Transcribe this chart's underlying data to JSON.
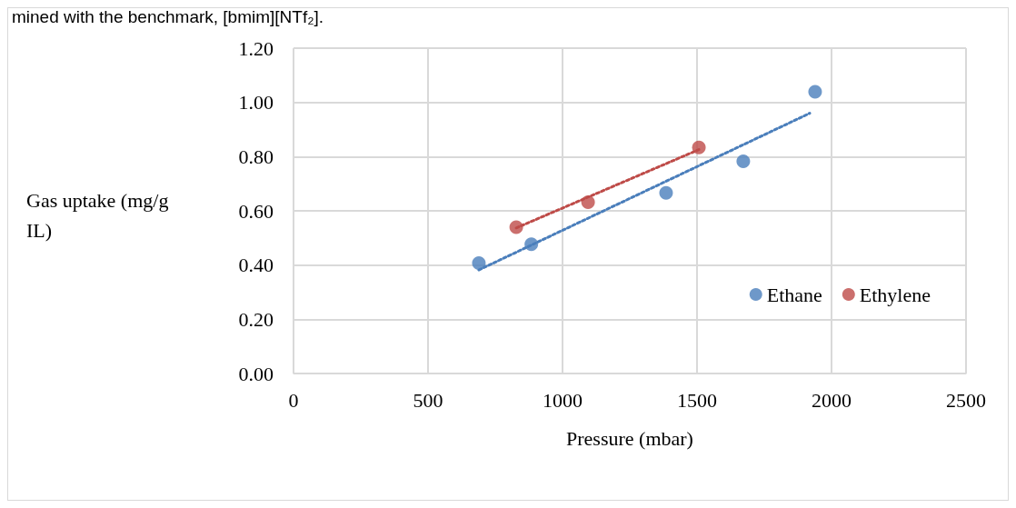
{
  "chart_data": {
    "type": "scatter",
    "xlabel": "Pressure (mbar)",
    "ylabel": "Gas uptake (mg/g IL)",
    "annotations": [
      "mined with the benchmark, [bmim][NTf₂]."
    ],
    "series": [
      {
        "name": "Ethane",
        "color": "#4a7ebb",
        "x": [
          689,
          884,
          1385,
          1672,
          1939
        ],
        "values": [
          0.407,
          0.477,
          0.666,
          0.783,
          1.039
        ]
      },
      {
        "name": "Ethylene",
        "color": "#be4b48",
        "x": [
          828,
          1095,
          1507
        ],
        "values": [
          0.54,
          0.632,
          0.834
        ]
      },
      {
        "type": "line",
        "color": "#4a7ebb",
        "line_style": "dotted",
        "marker": "none",
        "x": [
          689,
          1919
        ],
        "values": [
          0.382,
          0.96
        ]
      },
      {
        "type": "line",
        "color": "#be4b48",
        "line_style": "dotted",
        "marker": "none",
        "x": [
          828,
          1507
        ],
        "values": [
          0.537,
          0.826
        ]
      }
    ],
    "xlim": [
      0,
      2500
    ],
    "xticks": [
      0,
      500,
      1000,
      1500,
      2000,
      2500
    ],
    "ylim": [
      0,
      1.2
    ],
    "yticks": [
      {
        "value": 0,
        "label": "0.00"
      },
      {
        "value": 0.2,
        "label": "0.20"
      },
      {
        "value": 0.4,
        "label": "0.40"
      },
      {
        "value": 0.6,
        "label": "0.60"
      },
      {
        "value": 0.8,
        "label": "0.80"
      },
      {
        "value": 1.0,
        "label": "1.00"
      },
      {
        "value": 1.2,
        "label": "1.20"
      }
    ],
    "grid": true,
    "legend": "bottom right",
    "marker": "circle"
  }
}
